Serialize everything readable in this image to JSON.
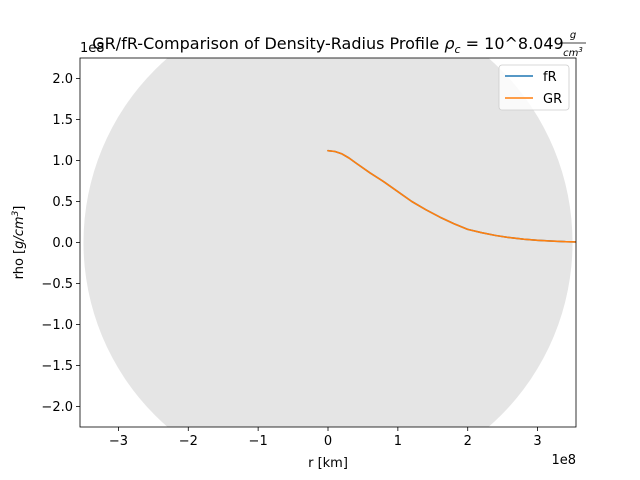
{
  "chart_data": {
    "type": "line",
    "title": {
      "main": "GR/fR-Comparison of Density-Radius Profile ",
      "rho_symbol": "ρ",
      "rho_sub": "c",
      "equals_value": " = 10^8.049 ",
      "frac_num": "g",
      "frac_den_base": "cm",
      "frac_den_exp": "3"
    },
    "xlabel": "r [km]",
    "ylabel": {
      "prefix": "rho [",
      "unit_base": "g/cm",
      "unit_exp": "3",
      "suffix": "]"
    },
    "x_offset_label": "1e8",
    "y_offset_label": "1e8",
    "xlim": [
      -3.55,
      3.55
    ],
    "ylim": [
      -2.25,
      2.25
    ],
    "x_ticks": [
      -3,
      -2,
      -1,
      0,
      1,
      2,
      3
    ],
    "x_tick_labels": [
      "−3",
      "−2",
      "−1",
      "0",
      "1",
      "2",
      "3"
    ],
    "y_ticks": [
      -2.0,
      -1.5,
      -1.0,
      -0.5,
      0.0,
      0.5,
      1.0,
      1.5,
      2.0
    ],
    "y_tick_labels": [
      "−2.0",
      "−1.5",
      "−1.0",
      "−0.5",
      "0.0",
      "0.5",
      "1.0",
      "1.5",
      "2.0"
    ],
    "background_disk": {
      "center": [
        0,
        0
      ],
      "radius": 3.5,
      "color": "#e5e5e5"
    },
    "legend_position": "upper right",
    "grid": false,
    "series": [
      {
        "name": "fR",
        "color": "#1f77b4",
        "x": [
          0,
          0.1,
          0.2,
          0.3,
          0.4,
          0.6,
          0.8,
          1.0,
          1.2,
          1.4,
          1.6,
          1.8,
          2.0,
          2.2,
          2.4,
          2.6,
          2.8,
          3.0,
          3.2,
          3.4,
          3.55
        ],
        "y": [
          1.12,
          1.11,
          1.08,
          1.03,
          0.97,
          0.85,
          0.74,
          0.62,
          0.5,
          0.4,
          0.31,
          0.23,
          0.16,
          0.12,
          0.085,
          0.06,
          0.04,
          0.027,
          0.017,
          0.01,
          0.007
        ]
      },
      {
        "name": "GR",
        "color": "#ff7f0e",
        "x": [
          0,
          0.1,
          0.2,
          0.3,
          0.4,
          0.6,
          0.8,
          1.0,
          1.2,
          1.4,
          1.6,
          1.8,
          2.0,
          2.2,
          2.4,
          2.6,
          2.8,
          3.0,
          3.2,
          3.4,
          3.55
        ],
        "y": [
          1.12,
          1.11,
          1.08,
          1.03,
          0.97,
          0.85,
          0.74,
          0.62,
          0.5,
          0.4,
          0.31,
          0.23,
          0.16,
          0.12,
          0.085,
          0.06,
          0.04,
          0.027,
          0.017,
          0.01,
          0.007
        ]
      }
    ]
  }
}
